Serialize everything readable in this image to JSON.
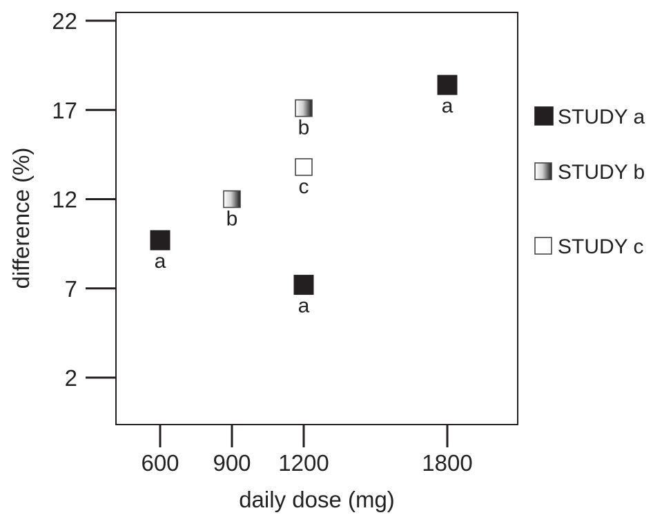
{
  "chart_data": {
    "type": "scatter",
    "title": "",
    "xlabel": "daily dose (mg)",
    "ylabel": "difference (%)",
    "x_ticks": [
      600,
      900,
      1200,
      1800
    ],
    "y_ticks": [
      2,
      7,
      12,
      17,
      22
    ],
    "xlim": [
      420,
      2100
    ],
    "ylim": [
      0,
      22
    ],
    "grid": false,
    "legend_position": "right",
    "series": [
      {
        "name": "STUDY a",
        "marker": "filled-square",
        "color": "#231f20",
        "points": [
          {
            "x": 600,
            "y": 9.7,
            "label": "a"
          },
          {
            "x": 1200,
            "y": 7.2,
            "label": "a"
          },
          {
            "x": 1800,
            "y": 18.4,
            "label": "a"
          }
        ]
      },
      {
        "name": "STUDY b",
        "marker": "gradient-square",
        "color": "#555555",
        "points": [
          {
            "x": 900,
            "y": 12.0,
            "label": "b"
          },
          {
            "x": 1200,
            "y": 17.1,
            "label": "b"
          }
        ]
      },
      {
        "name": "STUDY c",
        "marker": "open-square",
        "color": "#ffffff",
        "points": [
          {
            "x": 1200,
            "y": 13.8,
            "label": "c"
          }
        ]
      }
    ]
  }
}
